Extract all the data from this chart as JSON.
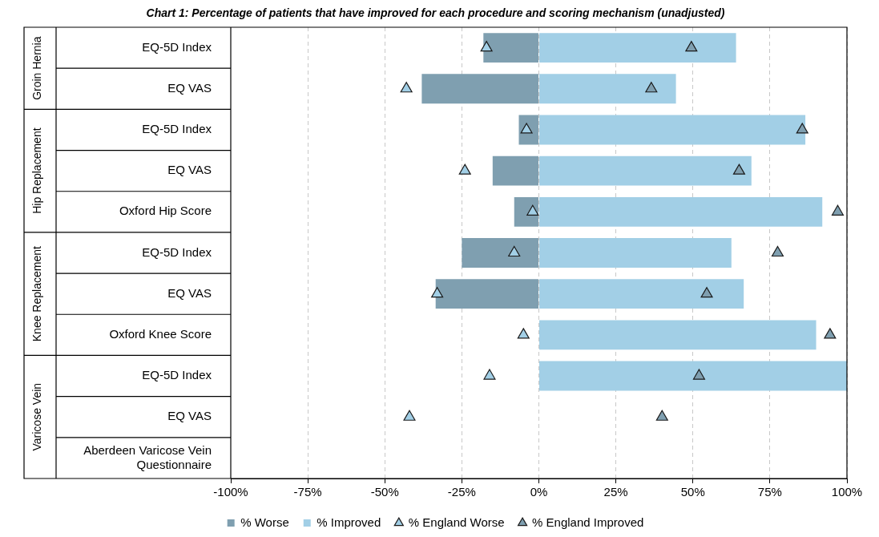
{
  "chart_data": {
    "type": "bar",
    "orientation": "horizontal",
    "stacked": true,
    "title": "Chart 1: Percentage of patients that have improved for each procedure and scoring mechanism (unadjusted)",
    "categories": [
      "EQ-5D Index",
      "EQ VAS",
      "EQ-5D Index",
      "EQ VAS",
      "Oxford Hip Score",
      "EQ-5D Index",
      "EQ VAS",
      "Oxford Knee Score",
      "EQ-5D Index",
      "EQ VAS",
      "Aberdeen Varicose Vein Questionnaire"
    ],
    "series": [
      {
        "name": "% Worse",
        "color": "#7f9fb0",
        "values": [
          -18,
          -38,
          -6.5,
          -15,
          -8,
          -25,
          -33.5,
          null,
          null,
          null,
          null
        ]
      },
      {
        "name": "% Improved",
        "color": "#a2cfe6",
        "values": [
          64,
          44.5,
          86.5,
          69,
          92,
          62.5,
          66.5,
          90,
          100,
          null,
          null
        ]
      },
      {
        "name": "% England Worse",
        "type": "scatter",
        "color": "#a2cfe6",
        "values": [
          -17,
          -43,
          -4,
          -24,
          -2,
          -8,
          -33,
          -5,
          -16,
          -42,
          null
        ]
      },
      {
        "name": "% England Improved",
        "type": "scatter",
        "color": "#7f9fb0",
        "values": [
          49.5,
          36.5,
          85.5,
          65,
          97,
          77.5,
          54.5,
          94.5,
          52,
          40,
          null
        ]
      }
    ],
    "annotations": [
      "Groin Hernia",
      "Hip Replacement",
      "Knee Replacement",
      "Varicose Vein"
    ],
    "xlim": [
      -100,
      100
    ],
    "xticks": [
      {
        "value": -100,
        "label": "-100%"
      },
      {
        "value": -75,
        "label": "-75%"
      },
      {
        "value": -50,
        "label": "-50%"
      },
      {
        "value": -25,
        "label": "-25%"
      },
      {
        "value": 0,
        "label": "0%"
      },
      {
        "value": 25,
        "label": "25%"
      },
      {
        "value": 50,
        "label": "50%"
      },
      {
        "value": 75,
        "label": "75%"
      },
      {
        "value": 100,
        "label": "100%"
      }
    ],
    "grid": "x",
    "legend": "bottom",
    "marker": "triangle"
  }
}
